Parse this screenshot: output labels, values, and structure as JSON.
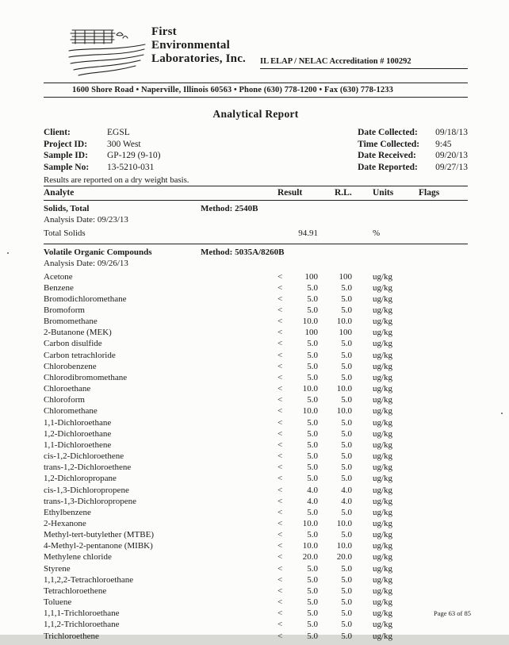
{
  "header": {
    "company_line1": "First",
    "company_line2": "Environmental",
    "company_line3": "Laboratories, Inc.",
    "accreditation": "IL ELAP / NELAC Accreditation # 100292",
    "address": "1600 Shore Road • Naperville, Illinois 60563 • Phone (630) 778-1200 • Fax (630) 778-1233"
  },
  "title": "Analytical Report",
  "info": {
    "left": [
      {
        "label": "Client:",
        "value": "EGSL"
      },
      {
        "label": "Project ID:",
        "value": "300 West"
      },
      {
        "label": "Sample ID:",
        "value": "GP-129  (9-10)"
      },
      {
        "label": "Sample No:",
        "value": "13-5210-031"
      }
    ],
    "right": [
      {
        "label": "Date Collected:",
        "value": "09/18/13"
      },
      {
        "label": "Time Collected:",
        "value": "9:45"
      },
      {
        "label": "Date Received:",
        "value": "09/20/13"
      },
      {
        "label": "Date Reported:",
        "value": "09/27/13"
      }
    ]
  },
  "dry_note": "Results are reported on a dry weight basis.",
  "table": {
    "columns": [
      "Analyte",
      "Result",
      "R.L.",
      "Units",
      "Flags"
    ],
    "sections": [
      {
        "name": "Solids, Total",
        "method": "Method:  2540B",
        "analysis_date": "Analysis Date:   09/23/13",
        "rows": [
          [
            "Total Solids",
            "",
            "94.91",
            "",
            "%",
            ""
          ]
        ]
      },
      {
        "name": "Volatile Organic Compounds",
        "method": "Method:  5035A/8260B",
        "analysis_date": "Analysis Date:  09/26/13",
        "rows": [
          [
            "Acetone",
            "<",
            "100",
            "100",
            "ug/kg",
            ""
          ],
          [
            "Benzene",
            "<",
            "5.0",
            "5.0",
            "ug/kg",
            ""
          ],
          [
            "Bromodichloromethane",
            "<",
            "5.0",
            "5.0",
            "ug/kg",
            ""
          ],
          [
            "Bromoform",
            "<",
            "5.0",
            "5.0",
            "ug/kg",
            ""
          ],
          [
            "Bromomethane",
            "<",
            "10.0",
            "10.0",
            "ug/kg",
            ""
          ],
          [
            "2-Butanone (MEK)",
            "<",
            "100",
            "100",
            "ug/kg",
            ""
          ],
          [
            "Carbon disulfide",
            "<",
            "5.0",
            "5.0",
            "ug/kg",
            ""
          ],
          [
            "Carbon tetrachloride",
            "<",
            "5.0",
            "5.0",
            "ug/kg",
            ""
          ],
          [
            "Chlorobenzene",
            "<",
            "5.0",
            "5.0",
            "ug/kg",
            ""
          ],
          [
            "Chlorodibromomethane",
            "<",
            "5.0",
            "5.0",
            "ug/kg",
            ""
          ],
          [
            "Chloroethane",
            "<",
            "10.0",
            "10.0",
            "ug/kg",
            ""
          ],
          [
            "Chloroform",
            "<",
            "5.0",
            "5.0",
            "ug/kg",
            ""
          ],
          [
            "Chloromethane",
            "<",
            "10.0",
            "10.0",
            "ug/kg",
            ""
          ],
          [
            "1,1-Dichloroethane",
            "<",
            "5.0",
            "5.0",
            "ug/kg",
            ""
          ],
          [
            "1,2-Dichloroethane",
            "<",
            "5.0",
            "5.0",
            "ug/kg",
            ""
          ],
          [
            "1,1-Dichloroethene",
            "<",
            "5.0",
            "5.0",
            "ug/kg",
            ""
          ],
          [
            "cis-1,2-Dichloroethene",
            "<",
            "5.0",
            "5.0",
            "ug/kg",
            ""
          ],
          [
            "trans-1,2-Dichloroethene",
            "<",
            "5.0",
            "5.0",
            "ug/kg",
            ""
          ],
          [
            "1,2-Dichloropropane",
            "<",
            "5.0",
            "5.0",
            "ug/kg",
            ""
          ],
          [
            "cis-1,3-Dichloropropene",
            "<",
            "4.0",
            "4.0",
            "ug/kg",
            ""
          ],
          [
            "trans-1,3-Dichloropropene",
            "<",
            "4.0",
            "4.0",
            "ug/kg",
            ""
          ],
          [
            "Ethylbenzene",
            "<",
            "5.0",
            "5.0",
            "ug/kg",
            ""
          ],
          [
            "2-Hexanone",
            "<",
            "10.0",
            "10.0",
            "ug/kg",
            ""
          ],
          [
            "Methyl-tert-butylether (MTBE)",
            "<",
            "5.0",
            "5.0",
            "ug/kg",
            ""
          ],
          [
            "4-Methyl-2-pentanone (MIBK)",
            "<",
            "10.0",
            "10.0",
            "ug/kg",
            ""
          ],
          [
            "Methylene chloride",
            "<",
            "20.0",
            "20.0",
            "ug/kg",
            ""
          ],
          [
            "Styrene",
            "<",
            "5.0",
            "5.0",
            "ug/kg",
            ""
          ],
          [
            "1,1,2,2-Tetrachloroethane",
            "<",
            "5.0",
            "5.0",
            "ug/kg",
            ""
          ],
          [
            "Tetrachloroethene",
            "<",
            "5.0",
            "5.0",
            "ug/kg",
            ""
          ],
          [
            "Toluene",
            "<",
            "5.0",
            "5.0",
            "ug/kg",
            ""
          ],
          [
            "1,1,1-Trichloroethane",
            "<",
            "5.0",
            "5.0",
            "ug/kg",
            ""
          ],
          [
            "1,1,2-Trichloroethane",
            "<",
            "5.0",
            "5.0",
            "ug/kg",
            ""
          ],
          [
            "Trichloroethene",
            "<",
            "5.0",
            "5.0",
            "ug/kg",
            ""
          ]
        ]
      }
    ]
  },
  "footer": {
    "page_label": "Page 63 of 85"
  }
}
